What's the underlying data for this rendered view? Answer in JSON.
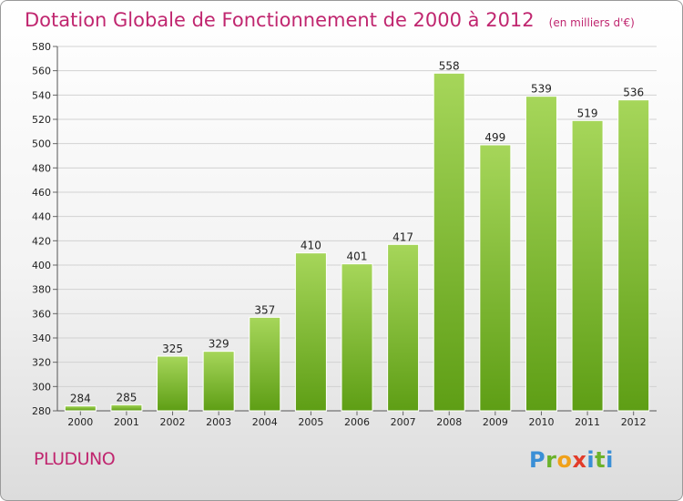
{
  "header": {
    "title": "Dotation Globale de Fonctionnement de 2000 à 2012",
    "unit": "(en milliers d'€)"
  },
  "commune": "PLUDUNO",
  "logo": "Proxiti",
  "colors": {
    "title": "#c0266f",
    "bar_top": "#a6d65a",
    "bar_bottom": "#5e9e15"
  },
  "chart_data": {
    "type": "bar",
    "title": "Dotation Globale de Fonctionnement de 2000 à 2012",
    "subtitle": "(en milliers d'€)",
    "xlabel": "",
    "ylabel": "",
    "categories": [
      "2000",
      "2001",
      "2002",
      "2003",
      "2004",
      "2005",
      "2006",
      "2007",
      "2008",
      "2009",
      "2010",
      "2011",
      "2012"
    ],
    "values": [
      284,
      285,
      325,
      329,
      357,
      410,
      401,
      417,
      558,
      499,
      539,
      519,
      536
    ],
    "ylim": [
      280,
      580
    ],
    "yticks": [
      280,
      300,
      320,
      340,
      360,
      380,
      400,
      420,
      440,
      460,
      480,
      500,
      520,
      540,
      560,
      580
    ],
    "grid": true,
    "legend": "none"
  }
}
